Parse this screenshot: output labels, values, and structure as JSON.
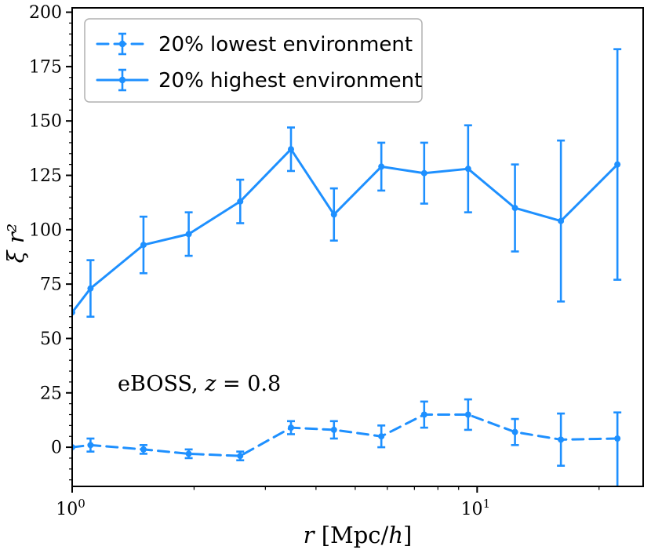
{
  "chart_data": {
    "type": "line",
    "subtype": "errorbar",
    "title": "",
    "xlabel_parts": [
      {
        "t": "r",
        "i": true
      },
      {
        "t": " [Mpc/",
        "i": false
      },
      {
        "t": "h",
        "i": true
      },
      {
        "t": "]",
        "i": false
      }
    ],
    "ylabel": "ξ r²",
    "annotation_text": "eBOSS, z = 0.8",
    "annotation_parts": [
      {
        "t": "eBOSS, ",
        "i": false
      },
      {
        "t": "z",
        "i": true
      },
      {
        "t": " = 0.8",
        "i": false
      }
    ],
    "x_scale": "log",
    "xlim": [
      1.0,
      25.7
    ],
    "ylim": [
      -18,
      202
    ],
    "y_ticks": [
      0,
      25,
      50,
      75,
      100,
      125,
      150,
      175,
      200
    ],
    "x_major_ticks": [
      {
        "value": 1,
        "base": "10",
        "exp": "0"
      },
      {
        "value": 10,
        "base": "10",
        "exp": "1"
      }
    ],
    "x_minor_ticks": [
      2,
      3,
      4,
      5,
      6,
      7,
      8,
      9,
      20
    ],
    "grid": false,
    "legend_position": "upper-left",
    "color": "#1E90FF",
    "axis_color": "#000000",
    "x": [
      1.0,
      1.11,
      1.5,
      1.94,
      2.6,
      3.47,
      4.43,
      5.8,
      7.4,
      9.5,
      12.4,
      16.1,
      22.2
    ],
    "series": [
      {
        "name": "20% lowest environment",
        "style": "dashed",
        "values": [
          0,
          1,
          -1,
          -3,
          -4,
          9,
          8,
          5,
          15,
          15,
          7,
          3.5,
          4
        ],
        "err_low": [
          0,
          3,
          2,
          2,
          2,
          3,
          4,
          5,
          6,
          7,
          6,
          12,
          45
        ],
        "err_high": [
          0,
          3,
          2,
          2,
          2,
          3,
          4,
          5,
          6,
          7,
          6,
          12,
          12
        ]
      },
      {
        "name": "20% highest environment",
        "style": "solid",
        "values": [
          62,
          73,
          93,
          98,
          113,
          137,
          107,
          129,
          126,
          128,
          110,
          104,
          130
        ],
        "err_low": [
          0,
          13,
          13,
          10,
          10,
          10,
          12,
          11,
          14,
          20,
          20,
          37,
          53
        ],
        "err_high": [
          0,
          13,
          13,
          10,
          10,
          10,
          12,
          11,
          14,
          20,
          20,
          37,
          53
        ]
      }
    ]
  }
}
